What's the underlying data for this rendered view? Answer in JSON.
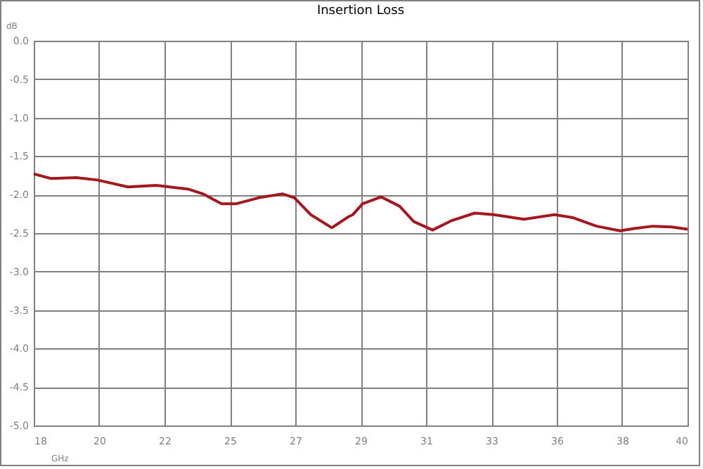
{
  "chart_data": {
    "type": "line",
    "title": "Insertion Loss",
    "xlabel": "GHz",
    "ylabel": "dB",
    "x": [
      18.0,
      18.57,
      19.43,
      20.14,
      21.17,
      22.12,
      23.22,
      23.69,
      24.32,
      24.8,
      25.58,
      26.37,
      26.77,
      27.32,
      28.03,
      28.58,
      28.74,
      29.06,
      29.69,
      30.31,
      30.79,
      31.42,
      32.05,
      32.84,
      33.48,
      34.49,
      35.52,
      36.15,
      36.94,
      37.73,
      38.2,
      38.83,
      39.46,
      40.0
    ],
    "series": [
      {
        "color": "#a3171e",
        "values": [
          -1.73,
          -1.79,
          -1.78,
          -1.81,
          -1.9,
          -1.88,
          -1.93,
          -1.99,
          -2.12,
          -2.12,
          -2.04,
          -1.99,
          -2.04,
          -2.26,
          -2.43,
          -2.29,
          -2.26,
          -2.12,
          -2.03,
          -2.15,
          -2.35,
          -2.46,
          -2.34,
          -2.24,
          -2.26,
          -2.32,
          -2.26,
          -2.3,
          -2.41,
          -2.47,
          -2.44,
          -2.41,
          -2.42,
          -2.45
        ]
      }
    ],
    "xlim": [
      18,
      40
    ],
    "xticks": [
      {
        "value": 18,
        "label": "18"
      },
      {
        "value": 20.2,
        "label": "20"
      },
      {
        "value": 22.4,
        "label": "22"
      },
      {
        "value": 24.6,
        "label": "25"
      },
      {
        "value": 26.8,
        "label": "27"
      },
      {
        "value": 29,
        "label": "29"
      },
      {
        "value": 31.2,
        "label": "31"
      },
      {
        "value": 33.4,
        "label": "33"
      },
      {
        "value": 35.6,
        "label": "36"
      },
      {
        "value": 37.8,
        "label": "38"
      },
      {
        "value": 40,
        "label": "40"
      }
    ],
    "ylim": [
      -5,
      0
    ],
    "yticks": [
      {
        "value": 0,
        "label": "0.0"
      },
      {
        "value": -0.5,
        "label": "-0.5"
      },
      {
        "value": -1,
        "label": "-1.0"
      },
      {
        "value": -1.5,
        "label": "-1.5"
      },
      {
        "value": -2,
        "label": "-2.0"
      },
      {
        "value": -2.5,
        "label": "-2.5"
      },
      {
        "value": -3,
        "label": "-3.0"
      },
      {
        "value": -3.5,
        "label": "-3.5"
      },
      {
        "value": -4,
        "label": "-4.0"
      },
      {
        "value": -4.5,
        "label": "-4.5"
      },
      {
        "value": -5,
        "label": "-5.0"
      }
    ],
    "grid": true
  }
}
